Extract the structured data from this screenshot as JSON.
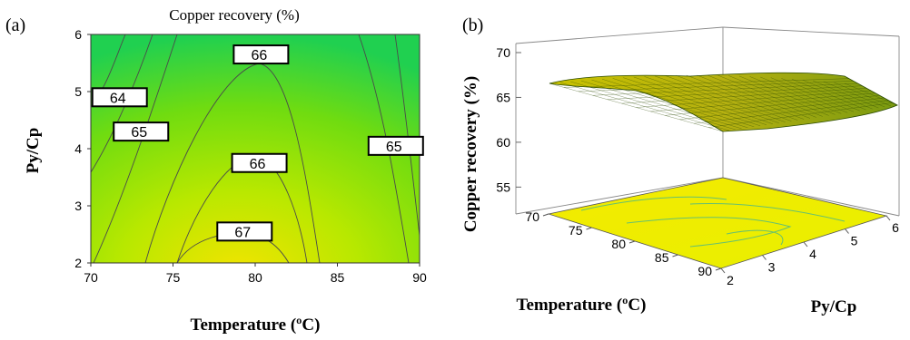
{
  "chart_data": [
    {
      "panel": "(a)",
      "type": "contour",
      "title": "Copper recovery (%)",
      "xlabel": "Temperature (ºC)",
      "ylabel": "Py/Cp",
      "xlim": [
        70,
        90
      ],
      "ylim": [
        2,
        6
      ],
      "xticks": [
        "70",
        "75",
        "80",
        "85",
        "90"
      ],
      "yticks": [
        "2",
        "3",
        "4",
        "5",
        "6"
      ],
      "contour_labels": [
        {
          "text": "64",
          "x": 71.2,
          "y": 4.9
        },
        {
          "text": "65",
          "x": 72.5,
          "y": 4.3
        },
        {
          "text": "66",
          "x": 79.8,
          "y": 5.65
        },
        {
          "text": "66",
          "x": 79.7,
          "y": 3.75
        },
        {
          "text": "65",
          "x": 88.0,
          "y": 4.05
        },
        {
          "text": "67",
          "x": 78.8,
          "y": 2.55
        }
      ],
      "colors": {
        "high": "#f2e400",
        "mid": "#8ee000",
        "low": "#10d060",
        "line": "#555555"
      }
    },
    {
      "panel": "(b)",
      "type": "surface",
      "zlabel": "Copper recovery (%)",
      "xlabel": "Temperature (ºC)",
      "ylabel": "Py/Cp",
      "zticks": [
        "55",
        "60",
        "65",
        "70"
      ],
      "xticks": [
        "70",
        "75",
        "80",
        "85",
        "90"
      ],
      "yticks": [
        "2",
        "3",
        "4",
        "5",
        "6"
      ],
      "zlim": [
        52,
        70
      ],
      "colors": {
        "surface": "#c8c000",
        "floor": "#f5f000",
        "mesh": "#1a4a00"
      }
    }
  ]
}
